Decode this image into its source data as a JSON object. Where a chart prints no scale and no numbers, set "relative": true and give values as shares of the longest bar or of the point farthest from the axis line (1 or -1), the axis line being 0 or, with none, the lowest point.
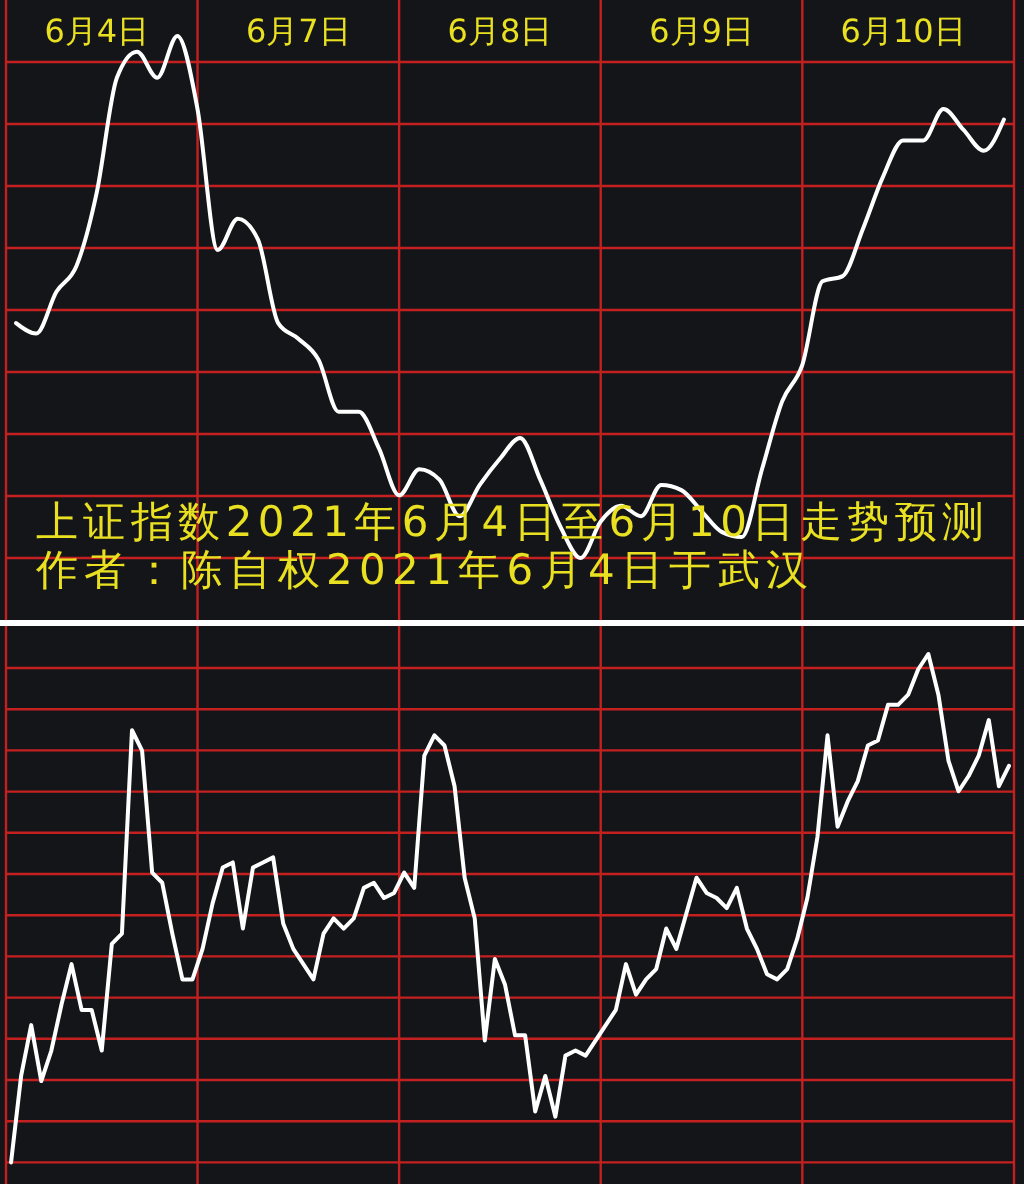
{
  "chart_data": [
    {
      "type": "line",
      "title": "上证指数2021年6月4日至6月10日走势预测",
      "subtitle": "作者：陈自权2021年6月4日于武汉",
      "relative": true,
      "tick_labels": "x",
      "grid": true,
      "categories": [
        null,
        null,
        null,
        null,
        "6月4日",
        null,
        null,
        null,
        null,
        null,
        null,
        null,
        null,
        null,
        "6月7日",
        null,
        null,
        null,
        null,
        null,
        null,
        null,
        null,
        null,
        "6月8日",
        null,
        null,
        null,
        null,
        null,
        null,
        null,
        null,
        null,
        "6月9日",
        null,
        null,
        null,
        null,
        null,
        null,
        null,
        null,
        null,
        "6月10日",
        null,
        null,
        null,
        null,
        null
      ],
      "series": [
        {
          "color": "#ffffff",
          "values": [
            0.45,
            0.43,
            0.51,
            0.56,
            0.7,
            0.92,
            0.97,
            0.92,
            1.0,
            0.86,
            0.59,
            0.65,
            0.61,
            0.45,
            0.42,
            0.38,
            0.28,
            0.28,
            0.21,
            0.12,
            0.17,
            0.15,
            0.08,
            0.14,
            0.19,
            0.23,
            0.15,
            0.06,
            0,
            0.07,
            0.1,
            0.08,
            0.14,
            0.13,
            0.09,
            0.05,
            0.04,
            0.17,
            0.3,
            0.37,
            0.53,
            0.54,
            0.63,
            0.73,
            0.8,
            0.8,
            0.86,
            0.82,
            0.78,
            0.84
          ]
        }
      ]
    },
    {
      "type": "line",
      "relative": true,
      "tick_labels": false,
      "grid": true,
      "categories": [
        null,
        null,
        null,
        null,
        null,
        null,
        null,
        null,
        null,
        null,
        null,
        null,
        null,
        null,
        null,
        null,
        null,
        null,
        null,
        null,
        null,
        null,
        null,
        null,
        null,
        null,
        null,
        null,
        null,
        null,
        null,
        null,
        null,
        null,
        null,
        null,
        null,
        null,
        null,
        null,
        null,
        null,
        null,
        null,
        null,
        null,
        null,
        null,
        null,
        null,
        null,
        null,
        null,
        null,
        null,
        null,
        null,
        null,
        null,
        null,
        null,
        null,
        null,
        null,
        null,
        null,
        null,
        null,
        null,
        null,
        null,
        null,
        null,
        null,
        null,
        null,
        null,
        null,
        null,
        null,
        null,
        null,
        null,
        null,
        null,
        null,
        null,
        null,
        null,
        null,
        null,
        null,
        null,
        null,
        null,
        null,
        null,
        null,
        null,
        null
      ],
      "series": [
        {
          "color": "#ffffff",
          "values": [
            0,
            0.17,
            0.27,
            0.16,
            0.22,
            0.31,
            0.39,
            0.3,
            0.3,
            0.22,
            0.43,
            0.45,
            0.85,
            0.81,
            0.57,
            0.55,
            0.45,
            0.36,
            0.36,
            0.42,
            0.51,
            0.58,
            0.59,
            0.46,
            0.58,
            0.59,
            0.6,
            0.47,
            0.42,
            0.39,
            0.36,
            0.45,
            0.48,
            0.46,
            0.48,
            0.54,
            0.55,
            0.52,
            0.53,
            0.57,
            0.54,
            0.8,
            0.84,
            0.82,
            0.74,
            0.56,
            0.48,
            0.24,
            0.4,
            0.35,
            0.25,
            0.25,
            0.1,
            0.17,
            0.09,
            0.21,
            0.22,
            0.21,
            0.24,
            0.27,
            0.3,
            0.39,
            0.33,
            0.36,
            0.38,
            0.46,
            0.42,
            0.49,
            0.56,
            0.53,
            0.52,
            0.5,
            0.54,
            0.46,
            0.42,
            0.37,
            0.36,
            0.38,
            0.44,
            0.52,
            0.64,
            0.84,
            0.66,
            0.71,
            0.75,
            0.82,
            0.83,
            0.9,
            0.9,
            0.92,
            0.97,
            1.0,
            0.92,
            0.79,
            0.73,
            0.76,
            0.8,
            0.87,
            0.74,
            0.78
          ]
        }
      ]
    }
  ]
}
